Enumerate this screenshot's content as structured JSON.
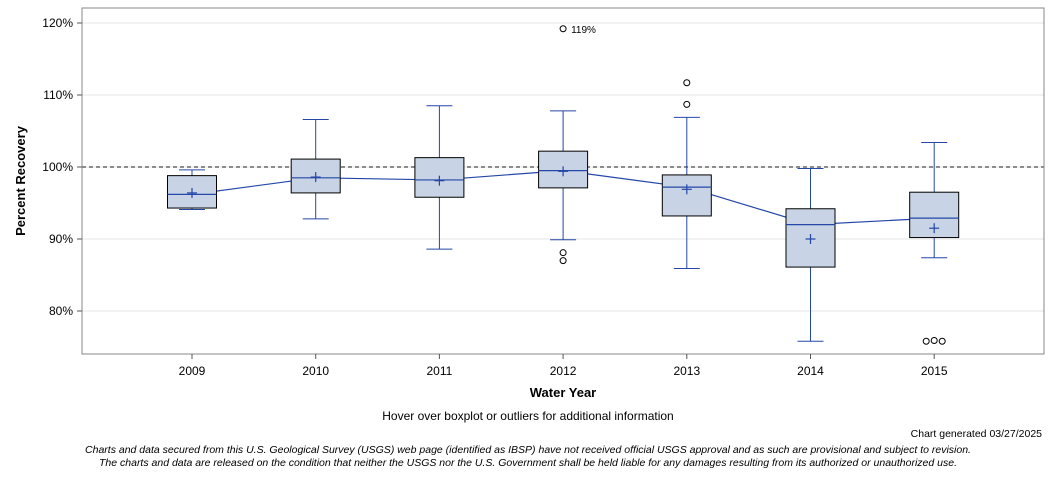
{
  "chart_data": {
    "type": "boxplot",
    "title": "",
    "xlabel": "Water Year",
    "ylabel": "Percent Recovery",
    "ylim": [
      74,
      122
    ],
    "yticks": [
      80,
      90,
      100,
      110,
      120
    ],
    "ytick_labels": [
      "80%",
      "90%",
      "100%",
      "110%",
      "120%"
    ],
    "reference_line": 100,
    "grid": "horizontal",
    "categories": [
      "2009",
      "2010",
      "2011",
      "2012",
      "2013",
      "2014",
      "2015"
    ],
    "boxes": [
      {
        "year": "2009",
        "whisker_low": 94.1,
        "q1": 94.3,
        "median": 96.2,
        "q3": 98.8,
        "whisker_high": 99.6,
        "mean": 96.4,
        "outliers": []
      },
      {
        "year": "2010",
        "whisker_low": 92.8,
        "q1": 96.4,
        "median": 98.5,
        "q3": 101.1,
        "whisker_high": 106.6,
        "mean": 98.6,
        "outliers": []
      },
      {
        "year": "2011",
        "whisker_low": 88.6,
        "q1": 95.8,
        "median": 98.2,
        "q3": 101.3,
        "whisker_high": 108.5,
        "mean": 98.1,
        "outliers": []
      },
      {
        "year": "2012",
        "whisker_low": 89.9,
        "q1": 97.1,
        "median": 99.5,
        "q3": 102.2,
        "whisker_high": 107.8,
        "mean": 99.4,
        "outliers": [
          87.0,
          88.1,
          119.2
        ]
      },
      {
        "year": "2013",
        "whisker_low": 85.9,
        "q1": 93.2,
        "median": 97.2,
        "q3": 98.9,
        "whisker_high": 106.9,
        "mean": 96.9,
        "outliers": [
          108.7,
          111.7
        ]
      },
      {
        "year": "2014",
        "whisker_low": 75.8,
        "q1": 86.1,
        "median": 92.0,
        "q3": 94.2,
        "whisker_high": 99.8,
        "mean": 90.0,
        "outliers": []
      },
      {
        "year": "2015",
        "whisker_low": 87.4,
        "q1": 90.2,
        "median": 92.9,
        "q3": 96.5,
        "whisker_high": 103.4,
        "mean": 91.5,
        "outliers": [
          75.8,
          75.9,
          75.8
        ]
      }
    ],
    "annotations": [
      {
        "label": "119%",
        "year": "2012",
        "value": 119.2
      }
    ],
    "colors": {
      "box_fill": "#c8d3e5",
      "whisker": "#2447a8",
      "median_line": "#2447a8",
      "box_edge": "#000000",
      "reference": "#666666",
      "grid": "#e6e6e6"
    }
  },
  "footer": {
    "hover_note": "Hover over boxplot or outliers for additional information",
    "generated": "Chart generated 03/27/2025",
    "disclaimer_1": "Charts and data secured from this U.S. Geological Survey (USGS) web page (identified as IBSP) have not received official USGS approval and as such are provisional and subject to revision.",
    "disclaimer_2": "The charts and data are released on the condition that neither the USGS nor the U.S. Government shall be held liable for any damages resulting from its authorized or unauthorized use."
  }
}
